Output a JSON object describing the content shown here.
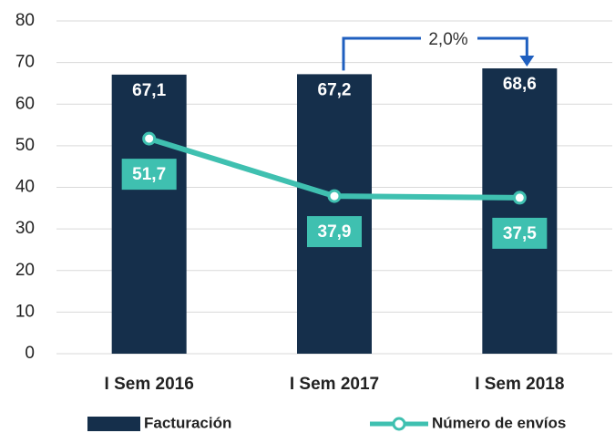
{
  "chart_data": {
    "type": "bar",
    "categories": [
      "I Sem 2016",
      "I Sem 2017",
      "I Sem 2018"
    ],
    "series": [
      {
        "name": "Facturación",
        "type": "bar",
        "color": "#152f4b",
        "values": [
          67.1,
          67.2,
          68.6
        ],
        "value_labels": [
          "67,1",
          "67,2",
          "68,6"
        ]
      },
      {
        "name": "Número de envíos",
        "type": "line",
        "color": "#3fc0b0",
        "values": [
          51.7,
          37.9,
          37.5
        ],
        "value_labels": [
          "51,7",
          "37,9",
          "37,5"
        ]
      }
    ],
    "annotation": "2,0%",
    "annotation_color": "#1f5fbf",
    "ylim": [
      0,
      80
    ],
    "yticks": [
      0,
      10,
      20,
      30,
      40,
      50,
      60,
      70,
      80
    ],
    "grid": true,
    "legend": "bottom"
  }
}
